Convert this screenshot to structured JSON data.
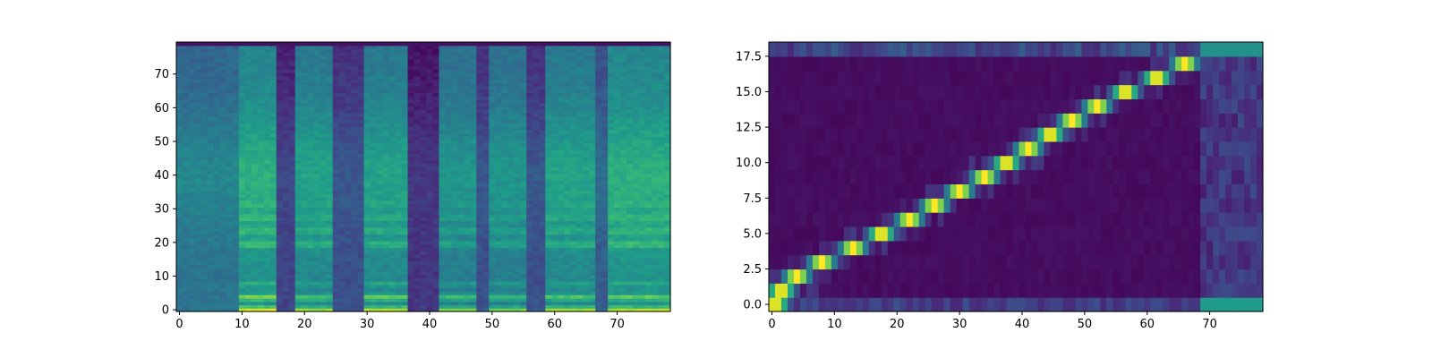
{
  "chart_data": [
    {
      "type": "heatmap",
      "description_kind": "mel-spectrogram",
      "title": "",
      "xlabel": "",
      "ylabel": "",
      "xlim": [
        0,
        79
      ],
      "ylim": [
        0,
        80
      ],
      "colormap": "viridis",
      "x_ticks": [
        0,
        10,
        20,
        30,
        40,
        50,
        60,
        70
      ],
      "y_ticks": [
        0,
        10,
        20,
        30,
        40,
        50,
        60,
        70
      ],
      "value_range": [
        0,
        1
      ],
      "grid": false,
      "segments": [
        {
          "x_start": 0,
          "x_end": 9,
          "level": 0.45,
          "harmonic": 0.25
        },
        {
          "x_start": 10,
          "x_end": 15,
          "level": 0.6,
          "harmonic": 0.95
        },
        {
          "x_start": 16,
          "x_end": 18,
          "level": 0.25,
          "harmonic": 0.2
        },
        {
          "x_start": 19,
          "x_end": 24,
          "level": 0.55,
          "harmonic": 0.85
        },
        {
          "x_start": 25,
          "x_end": 29,
          "level": 0.3,
          "harmonic": 0.25
        },
        {
          "x_start": 30,
          "x_end": 36,
          "level": 0.55,
          "harmonic": 0.9
        },
        {
          "x_start": 37,
          "x_end": 41,
          "level": 0.2,
          "harmonic": 0.15
        },
        {
          "x_start": 42,
          "x_end": 47,
          "level": 0.5,
          "harmonic": 0.8
        },
        {
          "x_start": 48,
          "x_end": 49,
          "level": 0.3,
          "harmonic": 0.3
        },
        {
          "x_start": 50,
          "x_end": 55,
          "level": 0.5,
          "harmonic": 0.8
        },
        {
          "x_start": 56,
          "x_end": 58,
          "level": 0.3,
          "harmonic": 0.3
        },
        {
          "x_start": 59,
          "x_end": 66,
          "level": 0.55,
          "harmonic": 0.85
        },
        {
          "x_start": 67,
          "x_end": 68,
          "level": 0.35,
          "harmonic": 0.35
        },
        {
          "x_start": 69,
          "x_end": 78,
          "level": 0.6,
          "harmonic": 0.9
        }
      ]
    },
    {
      "type": "heatmap",
      "description_kind": "attention-alignment",
      "title": "",
      "xlabel": "",
      "ylabel": "",
      "xlim": [
        0,
        79
      ],
      "ylim": [
        -0.5,
        18.5
      ],
      "colormap": "viridis",
      "x_ticks": [
        0,
        10,
        20,
        30,
        40,
        50,
        60,
        70
      ],
      "y_ticks": [
        0.0,
        2.5,
        5.0,
        7.5,
        10.0,
        12.5,
        15.0,
        17.5
      ],
      "y_tick_labels": [
        "0.0",
        "2.5",
        "5.0",
        "7.5",
        "10.0",
        "12.5",
        "15.0",
        "17.5"
      ],
      "value_range": [
        0,
        1
      ],
      "grid": false,
      "alignment_path": [
        {
          "token": 0,
          "x_center": 0.5
        },
        {
          "token": 1,
          "x_center": 1.5
        },
        {
          "token": 2,
          "x_center": 4
        },
        {
          "token": 3,
          "x_center": 8
        },
        {
          "token": 4,
          "x_center": 13
        },
        {
          "token": 5,
          "x_center": 17.5
        },
        {
          "token": 6,
          "x_center": 22
        },
        {
          "token": 7,
          "x_center": 26
        },
        {
          "token": 8,
          "x_center": 30
        },
        {
          "token": 9,
          "x_center": 34
        },
        {
          "token": 10,
          "x_center": 37.5
        },
        {
          "token": 11,
          "x_center": 41
        },
        {
          "token": 12,
          "x_center": 44.5
        },
        {
          "token": 13,
          "x_center": 48
        },
        {
          "token": 14,
          "x_center": 52
        },
        {
          "token": 15,
          "x_center": 56.5
        },
        {
          "token": 16,
          "x_center": 61.5
        },
        {
          "token": 17,
          "x_center": 66
        }
      ],
      "edge_rows": [
        {
          "token": 0,
          "level": 0.25,
          "tail_start": 69,
          "tail_level": 0.55
        },
        {
          "token": 18,
          "level": 0.3,
          "tail_start": 69,
          "tail_level": 0.5
        }
      ]
    }
  ]
}
